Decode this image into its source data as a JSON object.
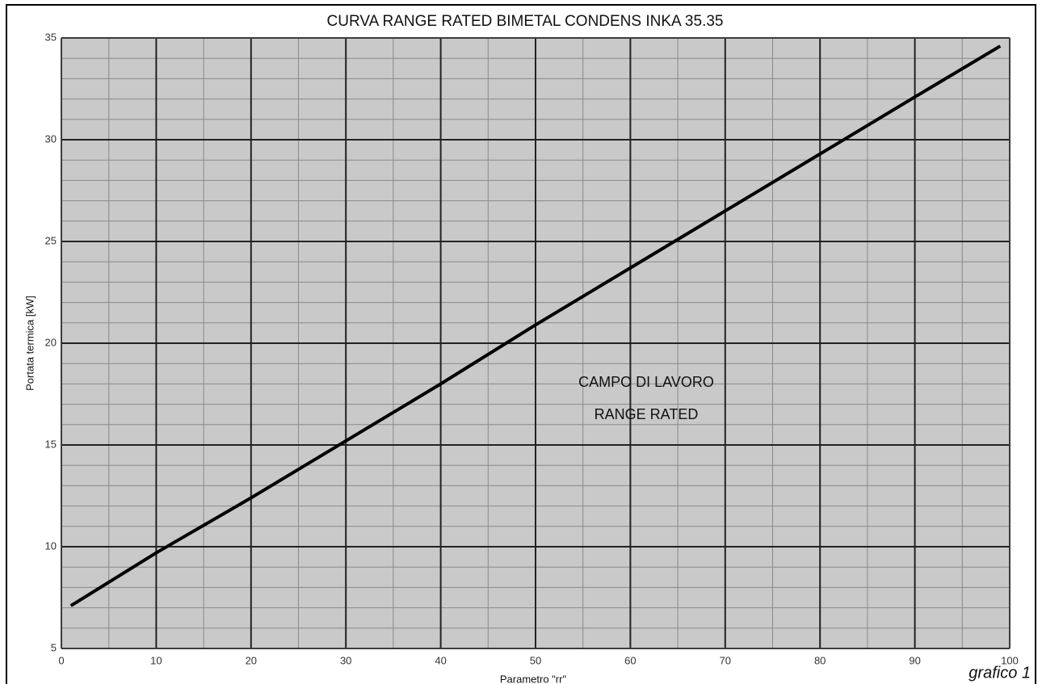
{
  "chart_data": {
    "type": "line",
    "title": "CURVA RANGE RATED BIMETAL CONDENS INKA 35.35",
    "xlabel": "Parametro \"rr\"",
    "ylabel": "Portata termica [kW]",
    "annotations": [
      "CAMPO DI LAVORO",
      "RANGE RATED",
      "grafico 1"
    ],
    "x": [
      1,
      10,
      20,
      30,
      40,
      50,
      60,
      70,
      80,
      90,
      99
    ],
    "series": [
      {
        "name": "Portata termica",
        "color": "#000000",
        "values": [
          7.1,
          9.7,
          12.4,
          15.2,
          18.0,
          20.9,
          23.7,
          26.5,
          29.3,
          32.1,
          34.6
        ]
      }
    ],
    "xlim": [
      0,
      100
    ],
    "ylim": [
      5,
      35
    ],
    "xticks": [
      0,
      10,
      20,
      30,
      40,
      50,
      60,
      70,
      80,
      90,
      100
    ],
    "yticks": [
      5,
      10,
      15,
      20,
      25,
      30,
      35
    ],
    "xminorticks": [
      5,
      15,
      25,
      35,
      45,
      55,
      65,
      75,
      85,
      95
    ],
    "yminorticks": [
      6,
      7,
      8,
      9,
      11,
      12,
      13,
      14,
      16,
      17,
      18,
      19,
      21,
      22,
      23,
      24,
      26,
      27,
      28,
      29,
      31,
      32,
      33,
      34
    ],
    "grid": true,
    "plot_background": "#c9c9c9"
  }
}
